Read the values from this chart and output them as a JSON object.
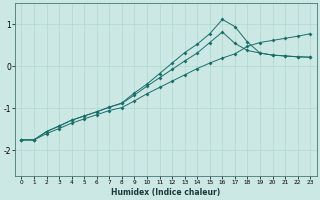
{
  "xlabel": "Humidex (Indice chaleur)",
  "bg_color": "#cce8e4",
  "grid_color": "#b0d8d0",
  "line_color": "#1a6e6a",
  "xlim": [
    -0.5,
    23.5
  ],
  "ylim": [
    -2.6,
    1.5
  ],
  "xticks": [
    0,
    1,
    2,
    3,
    4,
    5,
    6,
    7,
    8,
    9,
    10,
    11,
    12,
    13,
    14,
    15,
    16,
    17,
    18,
    19,
    20,
    21,
    22,
    23
  ],
  "yticks": [
    -2,
    -1,
    0,
    1
  ],
  "line1_x": [
    0,
    1,
    2,
    3,
    4,
    5,
    6,
    7,
    8,
    9,
    10,
    11,
    12,
    13,
    14,
    15,
    16,
    17,
    18,
    19,
    20,
    21,
    22,
    23
  ],
  "line1_y": [
    -1.75,
    -1.75,
    -1.6,
    -1.48,
    -1.35,
    -1.25,
    -1.15,
    -1.05,
    -0.98,
    -0.82,
    -0.65,
    -0.5,
    -0.35,
    -0.2,
    -0.05,
    0.08,
    0.2,
    0.3,
    0.48,
    0.57,
    0.62,
    0.67,
    0.72,
    0.78
  ],
  "line2_x": [
    0,
    1,
    2,
    3,
    4,
    5,
    6,
    7,
    8,
    9,
    10,
    11,
    12,
    13,
    14,
    15,
    16,
    17,
    18,
    19,
    20,
    21,
    22,
    23
  ],
  "line2_y": [
    -1.75,
    -1.75,
    -1.55,
    -1.42,
    -1.28,
    -1.18,
    -1.08,
    -0.97,
    -0.88,
    -0.68,
    -0.47,
    -0.27,
    -0.07,
    0.13,
    0.32,
    0.57,
    0.82,
    0.55,
    0.38,
    0.32,
    0.27,
    0.25,
    0.23,
    0.22
  ],
  "line3_x": [
    0,
    1,
    2,
    3,
    4,
    5,
    6,
    7,
    8,
    9,
    10,
    11,
    12,
    13,
    14,
    15,
    16,
    17,
    18,
    19,
    20,
    21,
    22,
    23
  ],
  "line3_y": [
    -1.75,
    -1.75,
    -1.55,
    -1.42,
    -1.28,
    -1.18,
    -1.08,
    -0.97,
    -0.87,
    -0.63,
    -0.42,
    -0.17,
    0.08,
    0.33,
    0.53,
    0.78,
    1.12,
    0.95,
    0.58,
    0.32,
    0.27,
    0.25,
    0.23,
    0.22
  ]
}
